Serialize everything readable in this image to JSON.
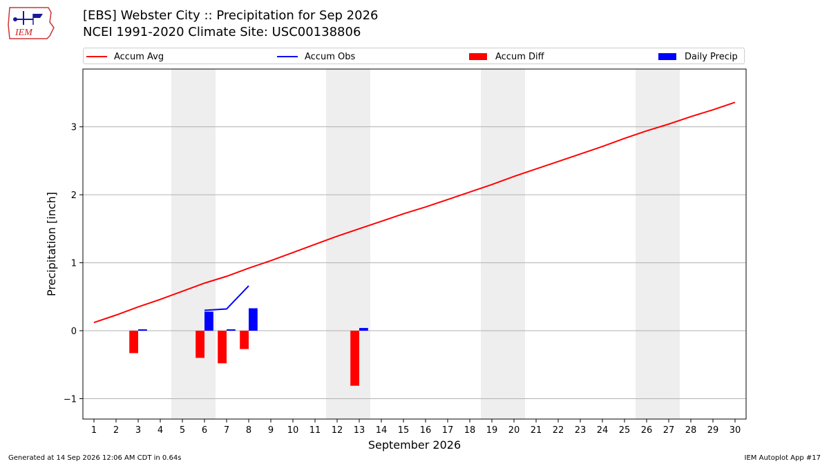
{
  "header": {
    "title_line1": "[EBS] Webster City :: Precipitation for Sep 2026",
    "title_line2": "NCEI 1991-2020 Climate Site: USC00138806"
  },
  "logo": {
    "text": "IEM",
    "icon": "iem-iowa-logo-icon"
  },
  "legend": {
    "items": [
      {
        "label": "Accum Avg",
        "kind": "line",
        "color": "#ff0000"
      },
      {
        "label": "Accum Obs",
        "kind": "line",
        "color": "#0000ff"
      },
      {
        "label": "Accum Diff",
        "kind": "bar",
        "color": "#ff0000"
      },
      {
        "label": "Daily Precip",
        "kind": "bar",
        "color": "#0000ff"
      }
    ]
  },
  "footer": {
    "left": "Generated at 14 Sep 2026 12:06 AM CDT in 0.64s",
    "right": "IEM Autoplot App #17"
  },
  "chart_data": {
    "type": "bar",
    "xlabel": "September 2026",
    "ylabel": "Precipitation [inch]",
    "xlim": [
      0.5,
      30.5
    ],
    "ylim": [
      -1.3,
      3.85
    ],
    "x_ticks": [
      1,
      2,
      3,
      4,
      5,
      6,
      7,
      8,
      9,
      10,
      11,
      12,
      13,
      14,
      15,
      16,
      17,
      18,
      19,
      20,
      21,
      22,
      23,
      24,
      25,
      26,
      27,
      28,
      29,
      30
    ],
    "y_ticks": [
      -1,
      0,
      1,
      2,
      3
    ],
    "y_tick_labels": [
      "−1",
      "0",
      "1",
      "2",
      "3"
    ],
    "grid": "horizontal",
    "weekend_shading": [
      [
        4.5,
        6.5
      ],
      [
        11.5,
        13.5
      ],
      [
        18.5,
        20.5
      ],
      [
        25.5,
        27.5
      ]
    ],
    "weekend_color": "#eeeeee",
    "series": [
      {
        "name": "Accum Avg",
        "type": "line",
        "color": "#ff0000",
        "x": [
          1,
          2,
          3,
          4,
          5,
          6,
          7,
          8,
          9,
          10,
          11,
          12,
          13,
          14,
          15,
          16,
          17,
          18,
          19,
          20,
          21,
          22,
          23,
          24,
          25,
          26,
          27,
          28,
          29,
          30
        ],
        "values": [
          0.12,
          0.23,
          0.35,
          0.46,
          0.58,
          0.7,
          0.8,
          0.92,
          1.03,
          1.15,
          1.27,
          1.39,
          1.5,
          1.61,
          1.72,
          1.82,
          1.93,
          2.04,
          2.15,
          2.27,
          2.38,
          2.49,
          2.6,
          2.71,
          2.83,
          2.94,
          3.04,
          3.15,
          3.25,
          3.36
        ]
      },
      {
        "name": "Accum Obs",
        "type": "line",
        "color": "#0000ff",
        "x": [
          6,
          7,
          8
        ],
        "values": [
          0.3,
          0.32,
          0.66
        ]
      },
      {
        "name": "Accum Diff",
        "type": "bar",
        "color": "#ff0000",
        "x": [
          3,
          6,
          7,
          8,
          13
        ],
        "values": [
          -0.33,
          -0.4,
          -0.48,
          -0.27,
          -0.81
        ]
      },
      {
        "name": "Daily Precip",
        "type": "bar",
        "color": "#0000ff",
        "x": [
          3,
          6,
          7,
          8,
          13
        ],
        "values": [
          0.02,
          0.28,
          0.02,
          0.33,
          0.04
        ]
      }
    ]
  }
}
